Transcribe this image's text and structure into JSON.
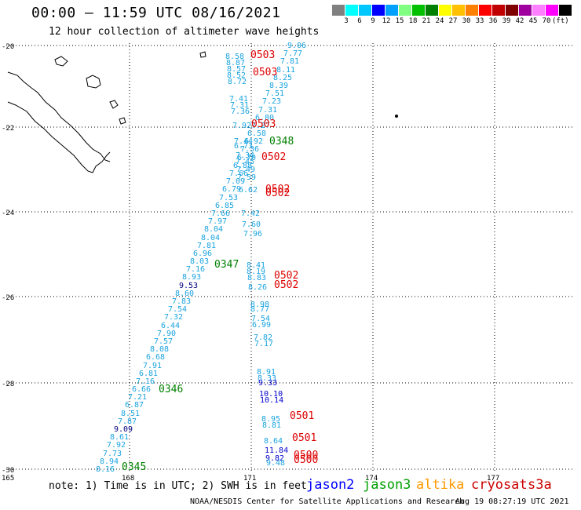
{
  "header": {
    "title": "00:00 – 11:59 UTC 08/16/2021",
    "subtitle": "12 hour collection of altimeter wave heights"
  },
  "color_scale": {
    "colors": [
      "#808080",
      "#00ffff",
      "#00c8ff",
      "#0000ff",
      "#00a0ff",
      "#80ff80",
      "#00c000",
      "#008000",
      "#ffff00",
      "#ffc000",
      "#ff8000",
      "#ff0000",
      "#c00000",
      "#800000",
      "#a000a0",
      "#ff80ff",
      "#ff00ff",
      "#000000"
    ],
    "labels": [
      "3",
      "6",
      "9",
      "12",
      "15",
      "18",
      "21",
      "24",
      "27",
      "30",
      "33",
      "36",
      "39",
      "42",
      "45",
      "70",
      "(ft)"
    ]
  },
  "map": {
    "lat_ticks": [
      "-20",
      "-22",
      "-24",
      "-26",
      "-28",
      "-30"
    ],
    "lon_ticks": [
      "165",
      "168",
      "171",
      "174",
      "177"
    ]
  },
  "track_a": {
    "values": [
      "9.06",
      "7.77",
      "7.81",
      "8.11",
      "8.25",
      "8.39",
      "7.51",
      "7.23",
      "7.31",
      "6.80",
      "7.27",
      "6.58",
      "6.92",
      "7.36",
      "6.70",
      "6.88",
      "7.66",
      "7.09",
      "6.79",
      "7.53",
      "6.85",
      "7.66",
      "7.97",
      "8.04",
      "8.04",
      "7.81",
      "6.96",
      "8.03",
      "7.16",
      "8.93",
      "9.53",
      "8.60",
      "7.83",
      "7.54",
      "7.32",
      "6.44",
      "7.90",
      "7.57",
      "8.08",
      "6.68",
      "7.91",
      "6.81",
      "7.16",
      "6.66",
      "7.21",
      "6.87",
      "8.51",
      "7.87",
      "9.09",
      "8.61",
      "7.92",
      "7.73",
      "8.94",
      "8.16"
    ],
    "dark_indices": [
      30,
      48
    ]
  },
  "track_b": {
    "values": [
      "8.58",
      "8.87",
      "8.57",
      "8.52",
      "8.72",
      "7.41",
      "7.31",
      "7.36",
      "7.92",
      "7.44",
      "6.73",
      "7.34",
      "7.45",
      "7.49",
      "7.59",
      "6.62",
      "7.42",
      "7.60",
      "7.96",
      "8.41",
      "8.19",
      "8.83",
      "8.26",
      "8.98",
      "8.77",
      "7.54",
      "6.99",
      "7.82",
      "7.17",
      "8.91",
      "8.33",
      "9.33",
      "10.10",
      "10.14",
      "8.95",
      "8.81",
      "8.64",
      "11.84",
      "9.82",
      "9.48"
    ],
    "dark_indices": [
      31,
      32,
      33,
      37,
      38
    ]
  },
  "passes": [
    {
      "id": "0503",
      "sat": "s3a"
    },
    {
      "id": "0503",
      "sat": "s3a"
    },
    {
      "id": "0503",
      "sat": "s3a"
    },
    {
      "id": "0348",
      "sat": "jason3"
    },
    {
      "id": "0502",
      "sat": "s3a"
    },
    {
      "id": "0502",
      "sat": "s3a"
    },
    {
      "id": "0502",
      "sat": "s3a"
    },
    {
      "id": "0347",
      "sat": "jason3"
    },
    {
      "id": "0502",
      "sat": "s3a"
    },
    {
      "id": "0502",
      "sat": "s3a"
    },
    {
      "id": "0346",
      "sat": "jason3"
    },
    {
      "id": "0501",
      "sat": "s3a"
    },
    {
      "id": "0501",
      "sat": "s3a"
    },
    {
      "id": "0500",
      "sat": "s3a"
    },
    {
      "id": "0500",
      "sat": "s3a"
    },
    {
      "id": "0345",
      "sat": "jason3"
    }
  ],
  "footer": {
    "note": "note: 1) Time is in UTC; 2) SWH is in feet",
    "legend": [
      {
        "name": "jason2",
        "color": "#0000ff"
      },
      {
        "name": "jason3",
        "color": "#00a000"
      },
      {
        "name": "altika",
        "color": "#ff9900"
      },
      {
        "name": "cryosat",
        "color": "#cc0000"
      },
      {
        "name": "s3a",
        "color": "#cc0000"
      }
    ],
    "credit": "NOAA/NESDIS Center for Satellite Applications and Research",
    "timestamp": "Aug 19 08:27:19 UTC 2021"
  }
}
